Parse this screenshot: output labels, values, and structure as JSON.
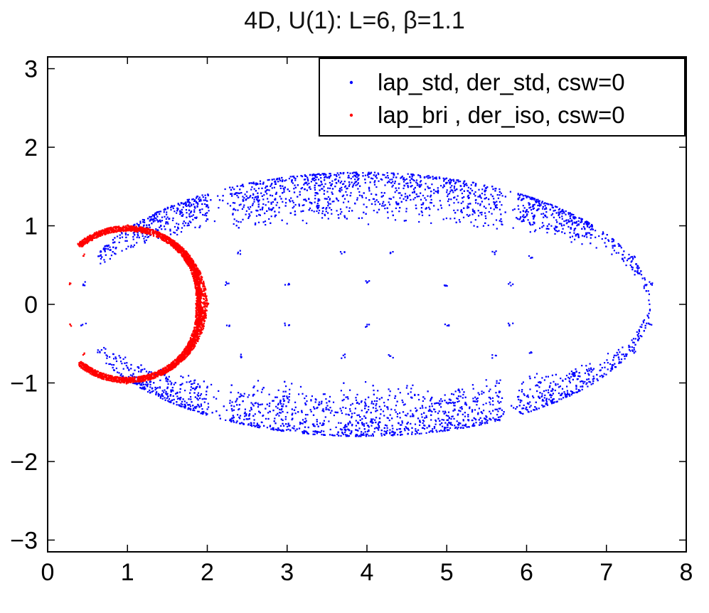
{
  "chart_data": {
    "type": "scatter",
    "title": "4D, U(1): L=6, β=1.1",
    "xlabel": "",
    "ylabel": "",
    "xlim": [
      0,
      8
    ],
    "ylim": [
      -3.15,
      3.15
    ],
    "xticks": [
      0,
      1,
      2,
      3,
      4,
      5,
      6,
      7,
      8
    ],
    "yticks": [
      -3,
      -2,
      -1,
      0,
      1,
      2,
      3
    ],
    "xtick_labels": [
      "0",
      "1",
      "2",
      "3",
      "4",
      "5",
      "6",
      "7",
      "8"
    ],
    "ytick_labels": [
      "−3",
      "−2",
      "−1",
      "0",
      "1",
      "2",
      "3"
    ],
    "grid": false,
    "legend_position": "top-right",
    "series": [
      {
        "name": "lap_std, der_std, csw=0",
        "color": "#0000ff",
        "marker": "point",
        "description_points": [
          {
            "x": 0.45,
            "y": 0.26
          },
          {
            "x": 0.45,
            "y": -0.26
          },
          {
            "x": 0.65,
            "y": 0.6
          },
          {
            "x": 0.65,
            "y": -0.6
          },
          {
            "x": 2.25,
            "y": 0.26
          },
          {
            "x": 2.25,
            "y": -0.26
          },
          {
            "x": 3.0,
            "y": 0.25
          },
          {
            "x": 3.0,
            "y": -0.25
          },
          {
            "x": 4.0,
            "y": 0.28
          },
          {
            "x": 4.0,
            "y": -0.28
          },
          {
            "x": 5.0,
            "y": 0.25
          },
          {
            "x": 5.0,
            "y": -0.25
          },
          {
            "x": 5.8,
            "y": 0.26
          },
          {
            "x": 5.8,
            "y": -0.26
          },
          {
            "x": 7.55,
            "y": 0.26
          },
          {
            "x": 7.55,
            "y": -0.26
          },
          {
            "x": 7.35,
            "y": 0.6
          },
          {
            "x": 7.35,
            "y": -0.6
          },
          {
            "x": 2.4,
            "y": 0.66
          },
          {
            "x": 2.4,
            "y": -0.66
          },
          {
            "x": 3.7,
            "y": 0.66
          },
          {
            "x": 3.7,
            "y": -0.66
          },
          {
            "x": 4.3,
            "y": 0.66
          },
          {
            "x": 4.3,
            "y": -0.66
          },
          {
            "x": 5.6,
            "y": 0.66
          },
          {
            "x": 5.6,
            "y": -0.66
          },
          {
            "x": 6.05,
            "y": 0.6
          },
          {
            "x": 6.05,
            "y": -0.6
          },
          {
            "x": 6.6,
            "y": 0.87
          },
          {
            "x": 6.6,
            "y": -0.87
          }
        ]
      },
      {
        "name": "lap_bri , der_iso, csw=0",
        "color": "#ff0000",
        "marker": "point",
        "description_points": [
          {
            "x": 0.28,
            "y": 0.26
          },
          {
            "x": 0.28,
            "y": -0.26
          },
          {
            "x": 0.45,
            "y": 0.63
          },
          {
            "x": 0.45,
            "y": -0.63
          },
          {
            "x": 1.0,
            "y": 1.0
          },
          {
            "x": 1.0,
            "y": -1.0
          },
          {
            "x": 2.0,
            "y": 0.0
          }
        ]
      }
    ]
  }
}
